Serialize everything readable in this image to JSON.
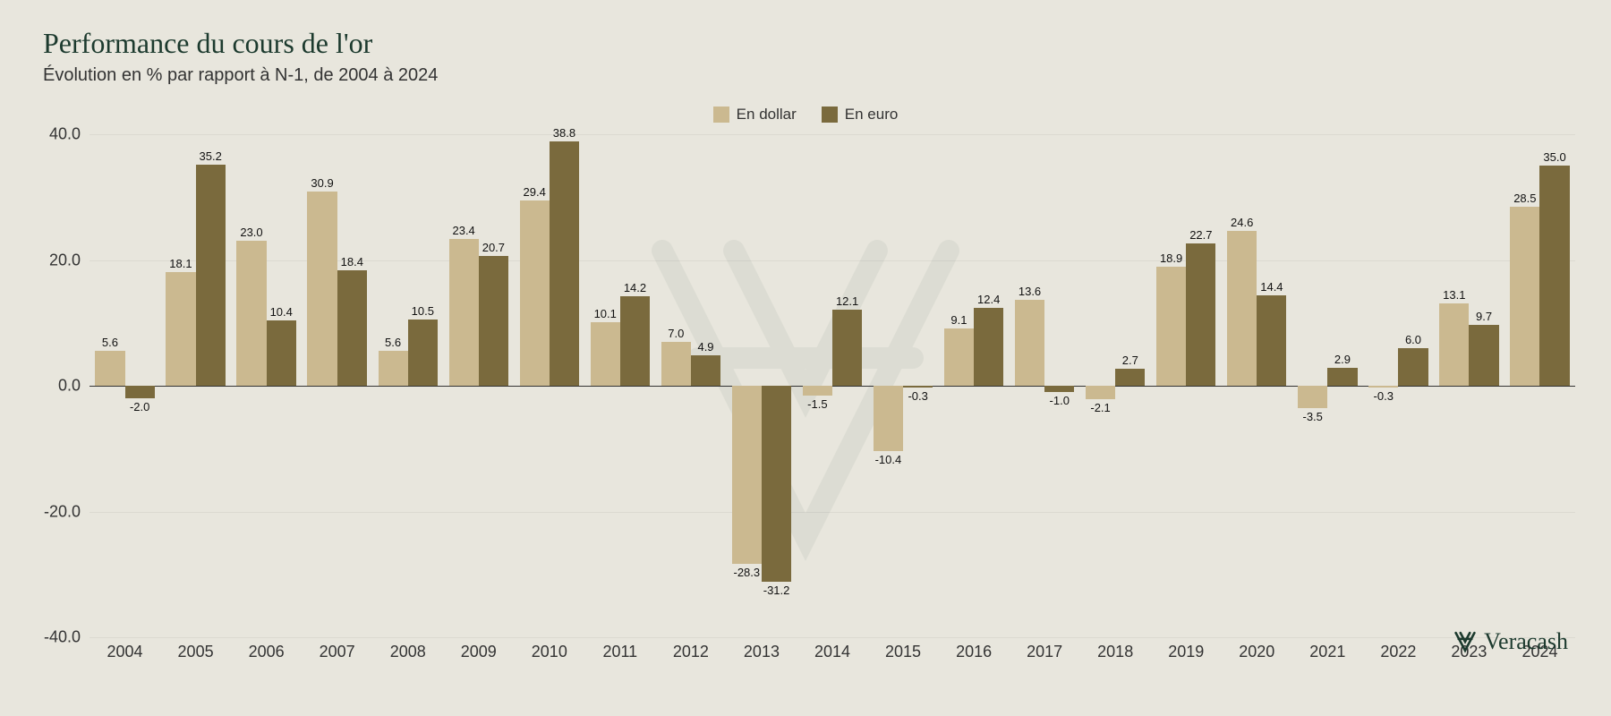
{
  "title": "Performance du cours de l'or",
  "subtitle": "Évolution en % par rapport à N-1, de 2004 à 2024",
  "brand": "Veracash",
  "chart": {
    "type": "bar",
    "background_color": "#e8e6dd",
    "title_color": "#1c3a2e",
    "title_fontsize": 32,
    "subtitle_fontsize": 20,
    "label_fontsize": 13,
    "axis_fontsize": 18,
    "grid_color": "rgba(0,0,0,0.05)",
    "zero_line_color": "#333333",
    "ylim": [
      -40,
      40
    ],
    "ytick_step": 20,
    "yticks": [
      "-40.0",
      "-20.0",
      "0.0",
      "20.0",
      "40.0"
    ],
    "categories": [
      "2004",
      "2005",
      "2006",
      "2007",
      "2008",
      "2009",
      "2010",
      "2011",
      "2012",
      "2013",
      "2014",
      "2015",
      "2016",
      "2017",
      "2018",
      "2019",
      "2020",
      "2021",
      "2022",
      "2023",
      "2024"
    ],
    "series": [
      {
        "name": "En dollar",
        "color": "#cbb990",
        "values": [
          5.6,
          18.1,
          23.0,
          30.9,
          5.6,
          23.4,
          29.4,
          10.1,
          7.0,
          -28.3,
          -1.5,
          -10.4,
          9.1,
          13.6,
          -2.1,
          18.9,
          24.6,
          -3.5,
          -0.3,
          13.1,
          28.5
        ]
      },
      {
        "name": "En euro",
        "color": "#7a6a3d",
        "values": [
          -2.0,
          35.2,
          10.4,
          18.4,
          10.5,
          20.7,
          38.8,
          14.2,
          4.9,
          -31.2,
          12.1,
          -0.3,
          12.4,
          -1.0,
          2.7,
          22.7,
          14.4,
          2.9,
          6.0,
          9.7,
          35.0
        ]
      }
    ],
    "legend_position": "top-center",
    "bar_group_gap_pct": 16
  }
}
